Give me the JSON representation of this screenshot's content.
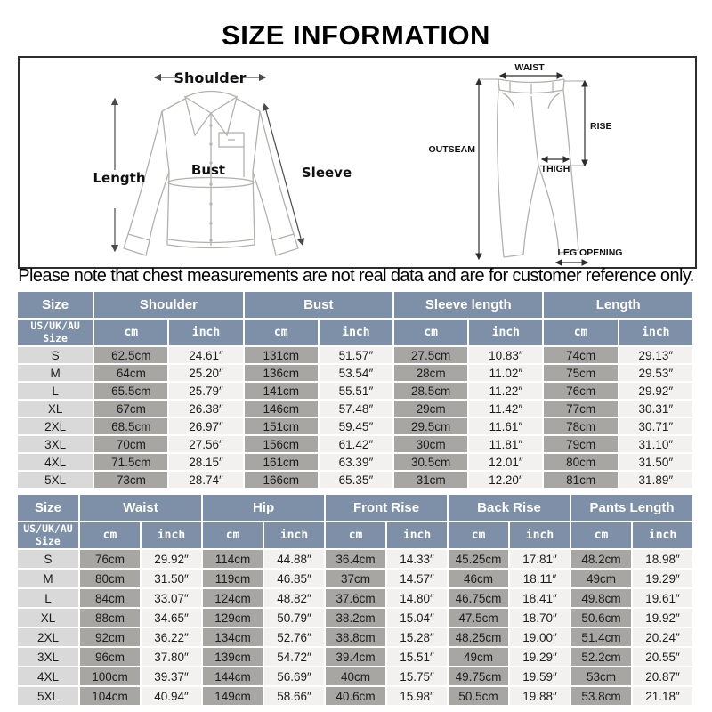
{
  "title": "SIZE INFORMATION",
  "note": "Please note that chest measurements are not real data and are for customer reference only.",
  "colors": {
    "header_bg": "#7e90a8",
    "size_col_bg": "#d9d9d9",
    "cm_col_bg": "#a8a6a2",
    "inch_col_bg": "#f2f1ef"
  },
  "shirt_diagram": {
    "shoulder_label": "Shoulder",
    "length_label": "Length",
    "bust_label": "Bust",
    "sleeve_label": "Sleeve"
  },
  "pants_diagram": {
    "waist_label": "WAIST",
    "rise_label": "RISE",
    "outseam_label": "OUTSEAM",
    "thigh_label": "THIGH",
    "leg_opening_label": "LEG OPENING"
  },
  "table_shirt": {
    "size_header": "Size",
    "subsize_header": "US/UK/AU\nSize",
    "unit_cm": "cm",
    "unit_inch": "inch",
    "groups": [
      "Shoulder",
      "Bust",
      "Sleeve length",
      "Length"
    ],
    "rows": [
      {
        "size": "S",
        "values": [
          "62.5cm",
          "24.61″",
          "131cm",
          "51.57″",
          "27.5cm",
          "10.83″",
          "74cm",
          "29.13″"
        ]
      },
      {
        "size": "M",
        "values": [
          "64cm",
          "25.20″",
          "136cm",
          "53.54″",
          "28cm",
          "11.02″",
          "75cm",
          "29.53″"
        ]
      },
      {
        "size": "L",
        "values": [
          "65.5cm",
          "25.79″",
          "141cm",
          "55.51″",
          "28.5cm",
          "11.22″",
          "76cm",
          "29.92″"
        ]
      },
      {
        "size": "XL",
        "values": [
          "67cm",
          "26.38″",
          "146cm",
          "57.48″",
          "29cm",
          "11.42″",
          "77cm",
          "30.31″"
        ]
      },
      {
        "size": "2XL",
        "values": [
          "68.5cm",
          "26.97″",
          "151cm",
          "59.45″",
          "29.5cm",
          "11.61″",
          "78cm",
          "30.71″"
        ]
      },
      {
        "size": "3XL",
        "values": [
          "70cm",
          "27.56″",
          "156cm",
          "61.42″",
          "30cm",
          "11.81″",
          "79cm",
          "31.10″"
        ]
      },
      {
        "size": "4XL",
        "values": [
          "71.5cm",
          "28.15″",
          "161cm",
          "63.39″",
          "30.5cm",
          "12.01″",
          "80cm",
          "31.50″"
        ]
      },
      {
        "size": "5XL",
        "values": [
          "73cm",
          "28.74″",
          "166cm",
          "65.35″",
          "31cm",
          "12.20″",
          "81cm",
          "31.89″"
        ]
      }
    ]
  },
  "table_pants": {
    "size_header": "Size",
    "subsize_header": "US/UK/AU\nSize",
    "unit_cm": "cm",
    "unit_inch": "inch",
    "groups": [
      "Waist",
      "Hip",
      "Front Rise",
      "Back Rise",
      "Pants Length"
    ],
    "rows": [
      {
        "size": "S",
        "values": [
          "76cm",
          "29.92″",
          "114cm",
          "44.88″",
          "36.4cm",
          "14.33″",
          "45.25cm",
          "17.81″",
          "48.2cm",
          "18.98″"
        ]
      },
      {
        "size": "M",
        "values": [
          "80cm",
          "31.50″",
          "119cm",
          "46.85″",
          "37cm",
          "14.57″",
          "46cm",
          "18.11″",
          "49cm",
          "19.29″"
        ]
      },
      {
        "size": "L",
        "values": [
          "84cm",
          "33.07″",
          "124cm",
          "48.82″",
          "37.6cm",
          "14.80″",
          "46.75cm",
          "18.41″",
          "49.8cm",
          "19.61″"
        ]
      },
      {
        "size": "XL",
        "values": [
          "88cm",
          "34.65″",
          "129cm",
          "50.79″",
          "38.2cm",
          "15.04″",
          "47.5cm",
          "18.70″",
          "50.6cm",
          "19.92″"
        ]
      },
      {
        "size": "2XL",
        "values": [
          "92cm",
          "36.22″",
          "134cm",
          "52.76″",
          "38.8cm",
          "15.28″",
          "48.25cm",
          "19.00″",
          "51.4cm",
          "20.24″"
        ]
      },
      {
        "size": "3XL",
        "values": [
          "96cm",
          "37.80″",
          "139cm",
          "54.72″",
          "39.4cm",
          "15.51″",
          "49cm",
          "19.29″",
          "52.2cm",
          "20.55″"
        ]
      },
      {
        "size": "4XL",
        "values": [
          "100cm",
          "39.37″",
          "144cm",
          "56.69″",
          "40cm",
          "15.75″",
          "49.75cm",
          "19.59″",
          "53cm",
          "20.87″"
        ]
      },
      {
        "size": "5XL",
        "values": [
          "104cm",
          "40.94″",
          "149cm",
          "58.66″",
          "40.6cm",
          "15.98″",
          "50.5cm",
          "19.88″",
          "53.8cm",
          "21.18″"
        ]
      }
    ]
  }
}
